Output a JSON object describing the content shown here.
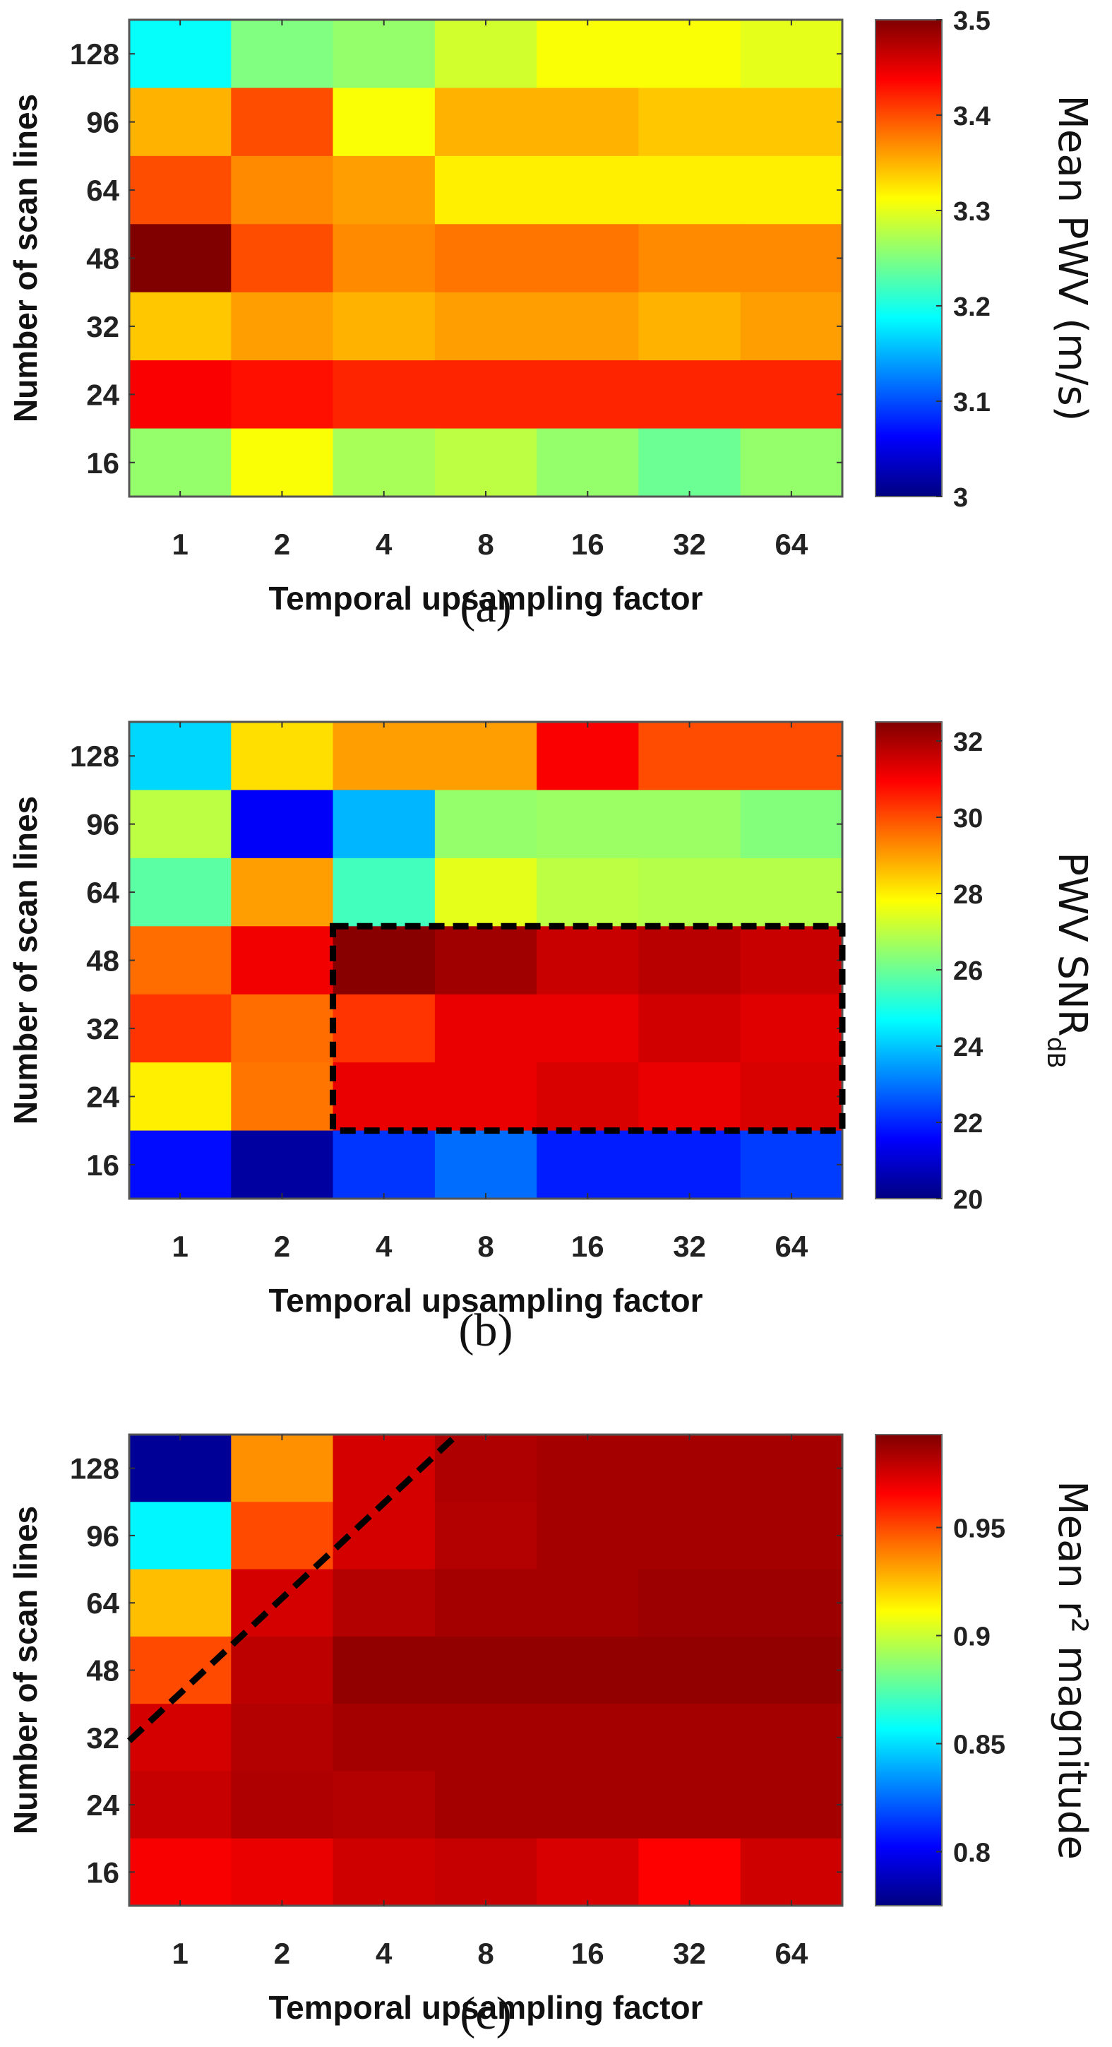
{
  "figure": {
    "panels": [
      "(a)",
      "(b)",
      "(c)"
    ]
  },
  "chart_data": [
    {
      "type": "heatmap",
      "panel_label": "(a)",
      "title": "",
      "xlabel": "Temporal upsampling factor",
      "ylabel": "Number of scan lines",
      "x_categories": [
        "1",
        "2",
        "4",
        "8",
        "16",
        "32",
        "64"
      ],
      "y_categories": [
        "128",
        "96",
        "64",
        "48",
        "32",
        "24",
        "16"
      ],
      "colorbar": {
        "label": "Mean PWV (m/s)",
        "colormap": "jet",
        "range": [
          3.0,
          3.5
        ],
        "ticks": [
          "3",
          "3.1",
          "3.2",
          "3.3",
          "3.4",
          "3.5"
        ],
        "tick_values": [
          3.0,
          3.1,
          3.2,
          3.3,
          3.4,
          3.5
        ]
      },
      "values": [
        [
          3.19,
          3.25,
          3.26,
          3.29,
          3.31,
          3.31,
          3.3
        ],
        [
          3.35,
          3.4,
          3.31,
          3.35,
          3.35,
          3.34,
          3.34
        ],
        [
          3.4,
          3.37,
          3.36,
          3.32,
          3.32,
          3.32,
          3.32
        ],
        [
          3.5,
          3.4,
          3.37,
          3.38,
          3.38,
          3.37,
          3.37
        ],
        [
          3.34,
          3.36,
          3.35,
          3.36,
          3.36,
          3.35,
          3.36
        ],
        [
          3.44,
          3.43,
          3.42,
          3.42,
          3.42,
          3.42,
          3.42
        ],
        [
          3.26,
          3.31,
          3.27,
          3.28,
          3.26,
          3.24,
          3.26
        ]
      ],
      "annotations": []
    },
    {
      "type": "heatmap",
      "panel_label": "(b)",
      "title": "",
      "xlabel": "Temporal upsampling factor",
      "ylabel": "Number of scan lines",
      "x_categories": [
        "1",
        "2",
        "4",
        "8",
        "16",
        "32",
        "64"
      ],
      "y_categories": [
        "128",
        "96",
        "64",
        "48",
        "32",
        "24",
        "16"
      ],
      "colorbar": {
        "label": "PWV SNR",
        "label_subscript": "dB",
        "colormap": "jet",
        "range": [
          20,
          32.5
        ],
        "ticks": [
          "20",
          "22",
          "24",
          "26",
          "28",
          "30",
          "32"
        ],
        "tick_values": [
          20,
          22,
          24,
          26,
          28,
          30,
          32
        ]
      },
      "values": [
        [
          24.2,
          28.2,
          29.0,
          29.0,
          31.0,
          30.0,
          30.0
        ],
        [
          27.0,
          21.5,
          23.8,
          26.5,
          26.6,
          26.6,
          26.3
        ],
        [
          25.8,
          29.0,
          25.5,
          27.5,
          27.0,
          26.9,
          26.9
        ],
        [
          29.6,
          31.1,
          32.4,
          32.1,
          31.6,
          31.8,
          31.6
        ],
        [
          30.3,
          29.6,
          30.3,
          31.2,
          31.2,
          31.5,
          31.3
        ],
        [
          28.0,
          29.5,
          31.2,
          31.2,
          31.4,
          31.2,
          31.4
        ],
        [
          21.7,
          20.4,
          22.2,
          22.9,
          21.9,
          21.9,
          22.3
        ]
      ],
      "annotations": [
        {
          "type": "dashed-rectangle",
          "x_from": "4",
          "x_to": "64",
          "y_from": "48",
          "y_to": "24"
        }
      ]
    },
    {
      "type": "heatmap",
      "panel_label": "(c)",
      "title": "",
      "xlabel": "Temporal upsampling factor",
      "ylabel": "Number of scan lines",
      "x_categories": [
        "1",
        "2",
        "4",
        "8",
        "16",
        "32",
        "64"
      ],
      "y_categories": [
        "128",
        "96",
        "64",
        "48",
        "32",
        "24",
        "16"
      ],
      "colorbar": {
        "label": "Mean r² magnitude",
        "colormap": "jet",
        "range": [
          0.775,
          0.993
        ],
        "ticks": [
          "0.8",
          "0.85",
          "0.9",
          "0.95"
        ],
        "tick_values": [
          0.8,
          0.85,
          0.9,
          0.95
        ]
      },
      "values": [
        [
          0.78,
          0.935,
          0.975,
          0.983,
          0.985,
          0.985,
          0.985
        ],
        [
          0.855,
          0.95,
          0.975,
          0.982,
          0.985,
          0.985,
          0.985
        ],
        [
          0.925,
          0.975,
          0.982,
          0.985,
          0.985,
          0.987,
          0.987
        ],
        [
          0.95,
          0.98,
          0.989,
          0.989,
          0.989,
          0.989,
          0.989
        ],
        [
          0.975,
          0.982,
          0.985,
          0.985,
          0.985,
          0.985,
          0.985
        ],
        [
          0.978,
          0.983,
          0.982,
          0.985,
          0.985,
          0.985,
          0.985
        ],
        [
          0.967,
          0.97,
          0.976,
          0.978,
          0.974,
          0.966,
          0.976
        ]
      ],
      "annotations": [
        {
          "type": "dashed-line",
          "from": {
            "x": "left-edge",
            "y": "between 32 and 24"
          },
          "to": {
            "x": "between 4 and 8",
            "y": "top-edge"
          }
        }
      ]
    }
  ]
}
